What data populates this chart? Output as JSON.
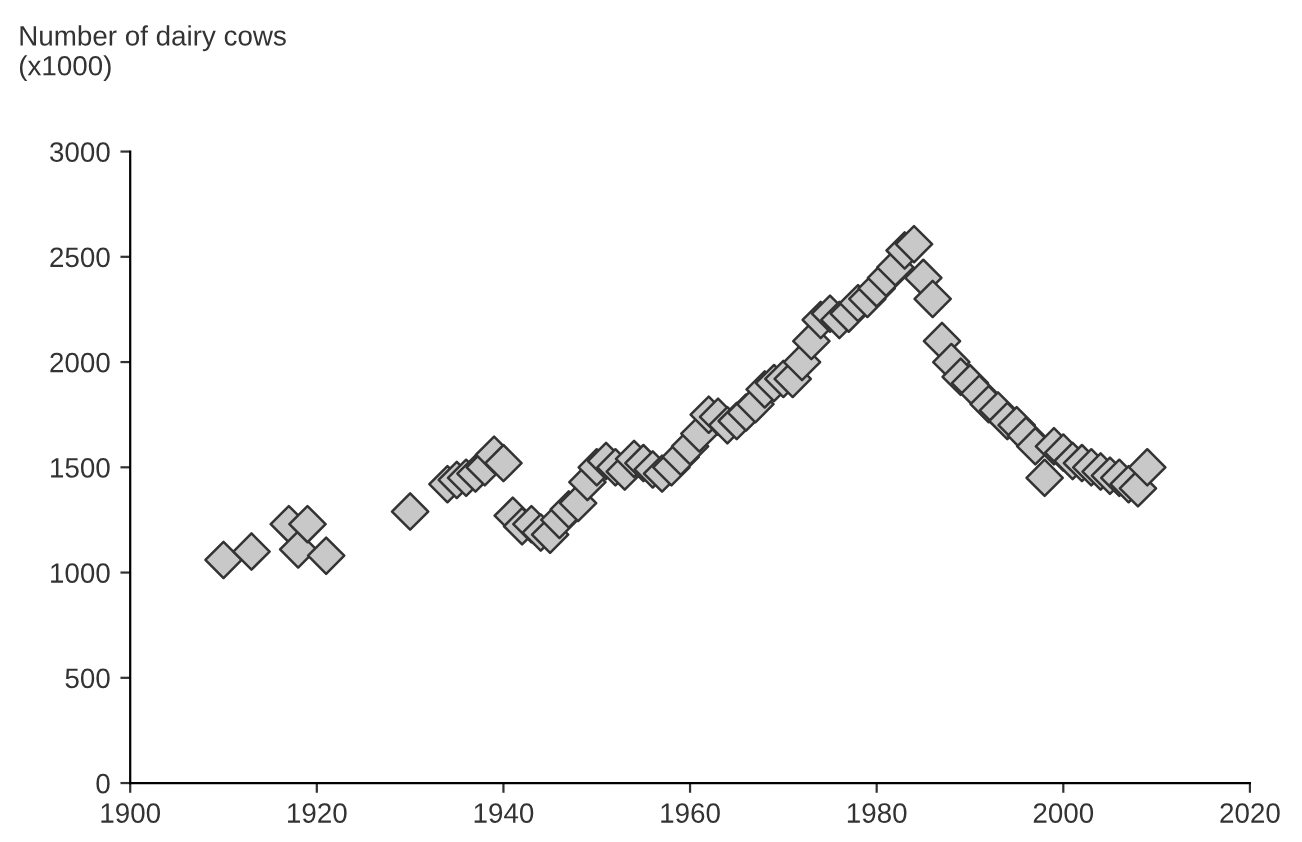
{
  "chart_data": {
    "type": "scatter",
    "ylabel": "Number of dairy cows\n(x1000)",
    "x": [
      1910,
      1913,
      1917,
      1918,
      1919,
      1921,
      1930,
      1934,
      1935,
      1936,
      1937,
      1938,
      1939,
      1940,
      1941,
      1942,
      1943,
      1944,
      1945,
      1946,
      1947,
      1948,
      1949,
      1950,
      1951,
      1952,
      1953,
      1954,
      1955,
      1956,
      1957,
      1958,
      1959,
      1960,
      1961,
      1962,
      1963,
      1964,
      1965,
      1966,
      1967,
      1968,
      1969,
      1970,
      1971,
      1972,
      1973,
      1974,
      1975,
      1976,
      1977,
      1978,
      1979,
      1980,
      1981,
      1982,
      1983,
      1984,
      1985,
      1986,
      1987,
      1988,
      1989,
      1990,
      1991,
      1992,
      1993,
      1994,
      1995,
      1996,
      1997,
      1998,
      1999,
      2000,
      2001,
      2002,
      2003,
      2004,
      2005,
      2006,
      2007,
      2008,
      2009
    ],
    "series": [
      {
        "color": "#c8c8c8",
        "values": [
          1060,
          1100,
          1230,
          1110,
          1230,
          1080,
          1290,
          1420,
          1440,
          1450,
          1470,
          1500,
          1560,
          1520,
          1270,
          1220,
          1230,
          1190,
          1180,
          1250,
          1300,
          1330,
          1430,
          1500,
          1530,
          1500,
          1480,
          1540,
          1520,
          1490,
          1470,
          1500,
          1550,
          1600,
          1660,
          1750,
          1740,
          1700,
          1720,
          1760,
          1800,
          1870,
          1900,
          1920,
          1920,
          2000,
          2100,
          2200,
          2230,
          2200,
          2230,
          2280,
          2300,
          2350,
          2400,
          2450,
          2530,
          2560,
          2400,
          2300,
          2100,
          2000,
          1930,
          1900,
          1850,
          1800,
          1770,
          1720,
          1700,
          1650,
          1600,
          1450,
          1600,
          1570,
          1530,
          1520,
          1500,
          1480,
          1460,
          1450,
          1420,
          1400,
          1500
        ]
      }
    ],
    "xlim": [
      1900,
      2020
    ],
    "xticks": [
      1900,
      1920,
      1940,
      1960,
      1980,
      2000,
      2020
    ],
    "ylim": [
      0,
      3000
    ],
    "yticks": [
      0,
      500,
      1000,
      1500,
      2000,
      2500,
      3000
    ],
    "marker": "diamond",
    "grid": false
  }
}
